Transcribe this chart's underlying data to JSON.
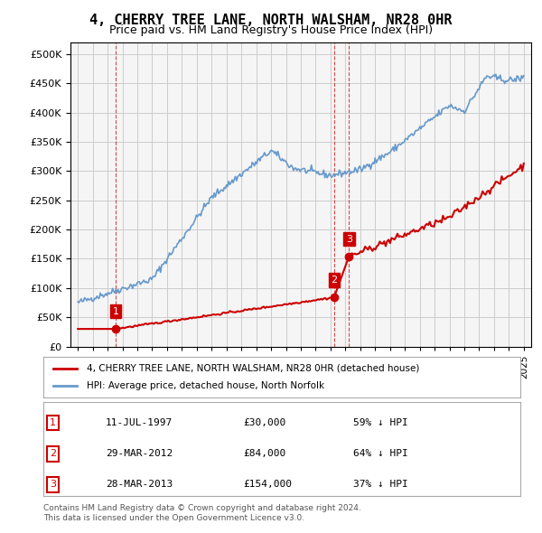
{
  "title": "4, CHERRY TREE LANE, NORTH WALSHAM, NR28 0HR",
  "subtitle": "Price paid vs. HM Land Registry's House Price Index (HPI)",
  "legend_property": "4, CHERRY TREE LANE, NORTH WALSHAM, NR28 0HR (detached house)",
  "legend_hpi": "HPI: Average price, detached house, North Norfolk",
  "footer1": "Contains HM Land Registry data © Crown copyright and database right 2024.",
  "footer2": "This data is licensed under the Open Government Licence v3.0.",
  "transactions": [
    {
      "date_num": 1997.53,
      "price": 30000,
      "label": "1"
    },
    {
      "date_num": 2012.24,
      "price": 84000,
      "label": "2"
    },
    {
      "date_num": 2013.24,
      "price": 154000,
      "label": "3"
    }
  ],
  "table_rows": [
    {
      "num": "1",
      "date": "11-JUL-1997",
      "price": "£30,000",
      "pct": "59% ↓ HPI"
    },
    {
      "num": "2",
      "date": "29-MAR-2012",
      "price": "£84,000",
      "pct": "64% ↓ HPI"
    },
    {
      "num": "3",
      "date": "28-MAR-2013",
      "price": "£154,000",
      "pct": "37% ↓ HPI"
    }
  ],
  "hpi_color": "#6699cc",
  "price_color": "#cc0000",
  "label_bg_color": "#cc0000",
  "label_text_color": "#ffffff",
  "grid_color": "#cccccc",
  "background_color": "#ffffff",
  "plot_bg_color": "#f5f5f5",
  "ylim": [
    0,
    520000
  ],
  "yticks": [
    0,
    50000,
    100000,
    150000,
    200000,
    250000,
    300000,
    350000,
    400000,
    450000,
    500000
  ],
  "xlim_start": 1994.5,
  "xlim_end": 2025.5,
  "xticks": [
    1995,
    1996,
    1997,
    1998,
    1999,
    2000,
    2001,
    2002,
    2003,
    2004,
    2005,
    2006,
    2007,
    2008,
    2009,
    2010,
    2011,
    2012,
    2013,
    2014,
    2015,
    2016,
    2017,
    2018,
    2019,
    2020,
    2021,
    2022,
    2023,
    2024,
    2025
  ]
}
